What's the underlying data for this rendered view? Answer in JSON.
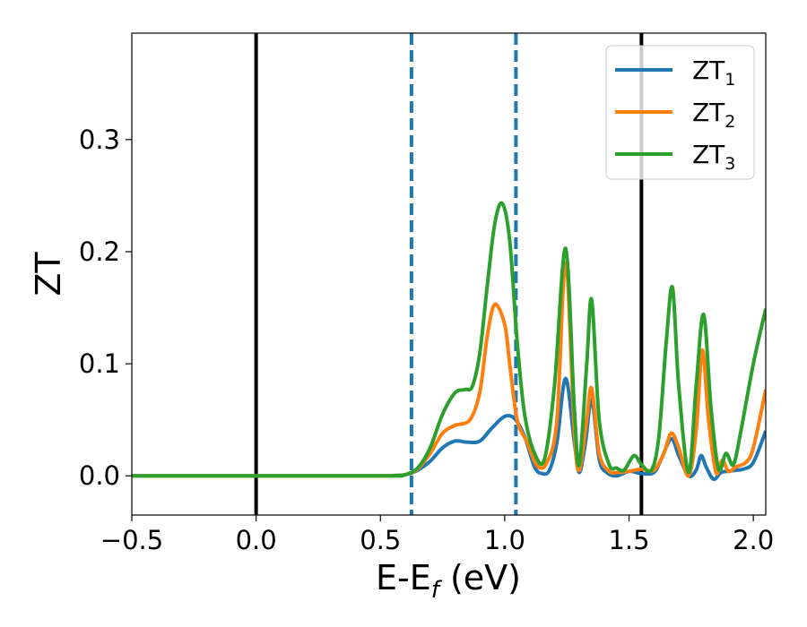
{
  "chart_data": {
    "type": "line",
    "xlabel": {
      "main": "E-E",
      "sub": "f",
      "tail": " (eV)"
    },
    "ylabel": "ZT",
    "xlim": [
      -0.5,
      2.05
    ],
    "ylim": [
      -0.035,
      0.395
    ],
    "x_ticks": [
      -0.5,
      0.0,
      0.5,
      1.0,
      1.5,
      2.0
    ],
    "x_tick_labels": [
      "−0.5",
      "0.0",
      "0.5",
      "1.0",
      "1.5",
      "2.0"
    ],
    "y_ticks": [
      0.0,
      0.1,
      0.2,
      0.3
    ],
    "y_tick_labels": [
      "0.0",
      "0.1",
      "0.2",
      "0.3"
    ],
    "grid": false,
    "legend": {
      "placement": "top-right"
    },
    "vlines": [
      {
        "x": 0.0,
        "style": "solid",
        "color": "#000000"
      },
      {
        "x": 1.55,
        "style": "solid",
        "color": "#000000"
      },
      {
        "x": 0.625,
        "style": "dashed",
        "color": "#1f77b4"
      },
      {
        "x": 1.045,
        "style": "dashed",
        "color": "#1f77b4"
      }
    ],
    "series": [
      {
        "name": "ZT",
        "sub": "1",
        "color": "#1f77b4",
        "points": [
          [
            -0.5,
            0
          ],
          [
            0.5,
            0
          ],
          [
            0.55,
            0.0002
          ],
          [
            0.6,
            0.001
          ],
          [
            0.65,
            0.005
          ],
          [
            0.7,
            0.013
          ],
          [
            0.75,
            0.025
          ],
          [
            0.8,
            0.031
          ],
          [
            0.85,
            0.03
          ],
          [
            0.9,
            0.031
          ],
          [
            0.95,
            0.043
          ],
          [
            1.0,
            0.053
          ],
          [
            1.04,
            0.051
          ],
          [
            1.08,
            0.035
          ],
          [
            1.12,
            0.008
          ],
          [
            1.15,
            0.002
          ],
          [
            1.18,
            0.005
          ],
          [
            1.21,
            0.03
          ],
          [
            1.245,
            0.087
          ],
          [
            1.28,
            0.03
          ],
          [
            1.3,
            0.003
          ],
          [
            1.325,
            0.03
          ],
          [
            1.35,
            0.068
          ],
          [
            1.38,
            0.015
          ],
          [
            1.41,
            0.003
          ],
          [
            1.45,
            0.0
          ],
          [
            1.5,
            0.004
          ],
          [
            1.55,
            0.002
          ],
          [
            1.6,
            0.003
          ],
          [
            1.63,
            0.015
          ],
          [
            1.67,
            0.033
          ],
          [
            1.7,
            0.018
          ],
          [
            1.74,
            0.0
          ],
          [
            1.77,
            0.005
          ],
          [
            1.79,
            0.018
          ],
          [
            1.81,
            0.008
          ],
          [
            1.84,
            -0.003
          ],
          [
            1.87,
            0.003
          ],
          [
            1.9,
            0.004
          ],
          [
            1.93,
            0.005
          ],
          [
            1.96,
            0.006
          ],
          [
            2.0,
            0.012
          ],
          [
            2.05,
            0.04
          ]
        ]
      },
      {
        "name": "ZT",
        "sub": "2",
        "color": "#ff7f0e",
        "points": [
          [
            -0.5,
            0
          ],
          [
            0.5,
            0
          ],
          [
            0.55,
            0.0002
          ],
          [
            0.6,
            0.001
          ],
          [
            0.65,
            0.006
          ],
          [
            0.7,
            0.02
          ],
          [
            0.75,
            0.038
          ],
          [
            0.8,
            0.045
          ],
          [
            0.86,
            0.05
          ],
          [
            0.9,
            0.075
          ],
          [
            0.93,
            0.125
          ],
          [
            0.96,
            0.153
          ],
          [
            1.0,
            0.135
          ],
          [
            1.02,
            0.1
          ],
          [
            1.05,
            0.05
          ],
          [
            1.09,
            0.03
          ],
          [
            1.13,
            0.009
          ],
          [
            1.17,
            0.012
          ],
          [
            1.21,
            0.05
          ],
          [
            1.245,
            0.19
          ],
          [
            1.28,
            0.04
          ],
          [
            1.3,
            0.005
          ],
          [
            1.33,
            0.05
          ],
          [
            1.35,
            0.078
          ],
          [
            1.38,
            0.02
          ],
          [
            1.42,
            0.004
          ],
          [
            1.45,
            0.003
          ],
          [
            1.5,
            0.004
          ],
          [
            1.55,
            0.006
          ],
          [
            1.6,
            0.005
          ],
          [
            1.64,
            0.02
          ],
          [
            1.67,
            0.038
          ],
          [
            1.7,
            0.025
          ],
          [
            1.74,
            0.0
          ],
          [
            1.77,
            0.04
          ],
          [
            1.795,
            0.112
          ],
          [
            1.82,
            0.05
          ],
          [
            1.85,
            0.003
          ],
          [
            1.875,
            0.014
          ],
          [
            1.9,
            0.004
          ],
          [
            1.93,
            0.008
          ],
          [
            1.97,
            0.012
          ],
          [
            2.0,
            0.025
          ],
          [
            2.05,
            0.077
          ]
        ]
      },
      {
        "name": "ZT",
        "sub": "3",
        "color": "#2ca02c",
        "points": [
          [
            -0.5,
            0
          ],
          [
            0.5,
            0
          ],
          [
            0.55,
            0.0002
          ],
          [
            0.6,
            0.001
          ],
          [
            0.65,
            0.007
          ],
          [
            0.7,
            0.025
          ],
          [
            0.75,
            0.055
          ],
          [
            0.8,
            0.074
          ],
          [
            0.84,
            0.077
          ],
          [
            0.87,
            0.08
          ],
          [
            0.9,
            0.11
          ],
          [
            0.93,
            0.17
          ],
          [
            0.96,
            0.225
          ],
          [
            0.99,
            0.243
          ],
          [
            1.02,
            0.21
          ],
          [
            1.05,
            0.12
          ],
          [
            1.08,
            0.055
          ],
          [
            1.12,
            0.02
          ],
          [
            1.16,
            0.015
          ],
          [
            1.2,
            0.08
          ],
          [
            1.245,
            0.203
          ],
          [
            1.28,
            0.06
          ],
          [
            1.3,
            0.01
          ],
          [
            1.33,
            0.1
          ],
          [
            1.35,
            0.157
          ],
          [
            1.38,
            0.05
          ],
          [
            1.42,
            0.01
          ],
          [
            1.45,
            0.007
          ],
          [
            1.48,
            0.005
          ],
          [
            1.52,
            0.018
          ],
          [
            1.55,
            0.01
          ],
          [
            1.59,
            0.005
          ],
          [
            1.62,
            0.035
          ],
          [
            1.65,
            0.12
          ],
          [
            1.675,
            0.168
          ],
          [
            1.7,
            0.08
          ],
          [
            1.74,
            0.003
          ],
          [
            1.77,
            0.08
          ],
          [
            1.8,
            0.144
          ],
          [
            1.83,
            0.06
          ],
          [
            1.86,
            0.006
          ],
          [
            1.89,
            0.02
          ],
          [
            1.92,
            0.01
          ],
          [
            1.95,
            0.04
          ],
          [
            2.0,
            0.1
          ],
          [
            2.05,
            0.149
          ]
        ]
      }
    ]
  }
}
